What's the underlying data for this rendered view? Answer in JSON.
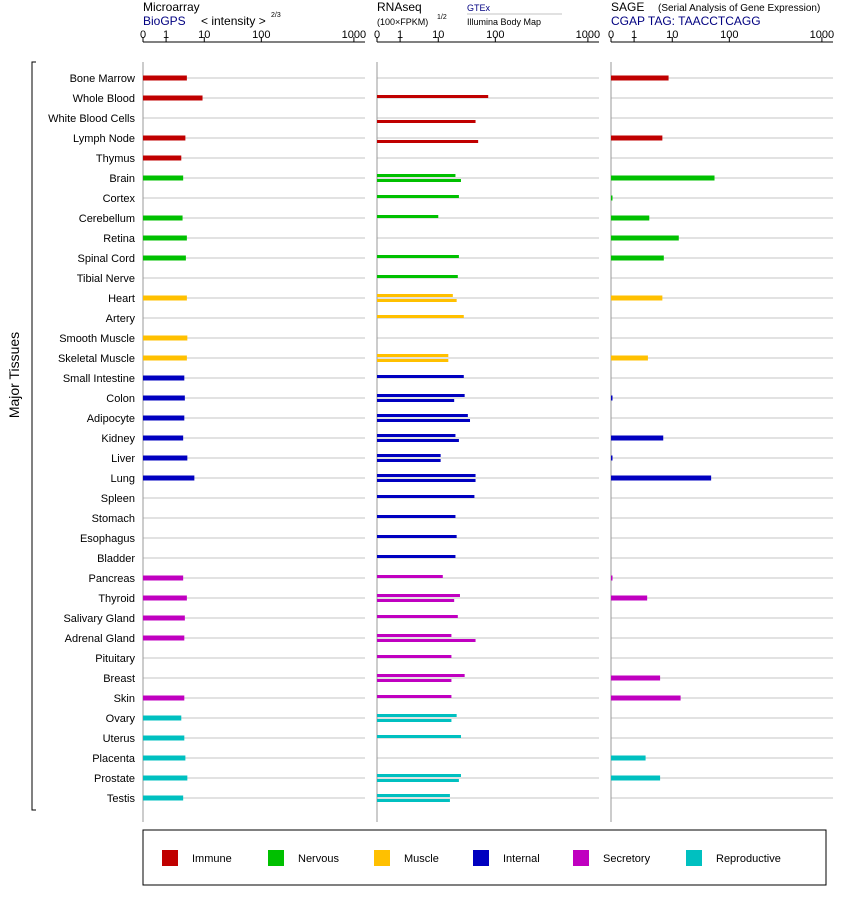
{
  "y_axis_label": "Major Tissues",
  "panels": {
    "microarray": {
      "title": "Microarray",
      "source": "BioGPS",
      "scale_label": "< intensity >",
      "scale_exponent": "2/3"
    },
    "rnaseq": {
      "title": "RNAseq",
      "unit": "(100×FPKM)",
      "unit_exponent": "1/2",
      "legend_gtex": "GTEx",
      "legend_illumina": "Illumina Body Map"
    },
    "sage": {
      "title": "SAGE",
      "subtitle": "(Serial Analysis of Gene Expression)",
      "tag": "CGAP TAG: TAACCTCAGG"
    }
  },
  "category_legend": [
    {
      "key": "immune",
      "label": "Immune",
      "color": "#c00000"
    },
    {
      "key": "nervous",
      "label": "Nervous",
      "color": "#00c000"
    },
    {
      "key": "muscle",
      "label": "Muscle",
      "color": "#ffc000"
    },
    {
      "key": "internal",
      "label": "Internal",
      "color": "#0000c0"
    },
    {
      "key": "secretory",
      "label": "Secretory",
      "color": "#c000c0"
    },
    {
      "key": "reproductive",
      "label": "Reproductive",
      "color": "#00c0c0"
    }
  ],
  "chart_data": {
    "type": "bar",
    "orientation": "horizontal",
    "x_scale": "log",
    "x_ticks": [
      "0",
      "1",
      "10",
      "100",
      "1000"
    ],
    "xlim": [
      0,
      1000
    ],
    "tissues": [
      {
        "name": "Bone Marrow",
        "category": "immune",
        "microarray": 3.5,
        "rnaseq_gtex": null,
        "rnaseq_ibm": null,
        "sage": 8
      },
      {
        "name": "Whole Blood",
        "category": "immune",
        "microarray": 9,
        "rnaseq_gtex": 75,
        "rnaseq_ibm": null,
        "sage": null
      },
      {
        "name": "White Blood Cells",
        "category": "immune",
        "microarray": null,
        "rnaseq_gtex": null,
        "rnaseq_ibm": 45,
        "sage": null
      },
      {
        "name": "Lymph Node",
        "category": "immune",
        "microarray": 3.2,
        "rnaseq_gtex": null,
        "rnaseq_ibm": 50,
        "sage": 5.5
      },
      {
        "name": "Thymus",
        "category": "immune",
        "microarray": 2.5,
        "rnaseq_gtex": null,
        "rnaseq_ibm": null,
        "sage": null
      },
      {
        "name": "Brain",
        "category": "nervous",
        "microarray": 2.8,
        "rnaseq_gtex": 20,
        "rnaseq_ibm": 25,
        "sage": 55
      },
      {
        "name": "Cortex",
        "category": "nervous",
        "microarray": null,
        "rnaseq_gtex": 23,
        "rnaseq_ibm": null,
        "sage": 0.05
      },
      {
        "name": "Cerebellum",
        "category": "nervous",
        "microarray": 2.7,
        "rnaseq_gtex": 10,
        "rnaseq_ibm": null,
        "sage": 2.5
      },
      {
        "name": "Retina",
        "category": "nervous",
        "microarray": 3.5,
        "rnaseq_gtex": null,
        "rnaseq_ibm": null,
        "sage": 13
      },
      {
        "name": "Spinal Cord",
        "category": "nervous",
        "microarray": 3.3,
        "rnaseq_gtex": 23,
        "rnaseq_ibm": null,
        "sage": 6
      },
      {
        "name": "Tibial Nerve",
        "category": "nervous",
        "microarray": null,
        "rnaseq_gtex": 22,
        "rnaseq_ibm": null,
        "sage": null
      },
      {
        "name": "Heart",
        "category": "muscle",
        "microarray": 3.5,
        "rnaseq_gtex": 18,
        "rnaseq_ibm": 21,
        "sage": 5.5
      },
      {
        "name": "Artery",
        "category": "muscle",
        "microarray": null,
        "rnaseq_gtex": 28,
        "rnaseq_ibm": null,
        "sage": null
      },
      {
        "name": "Smooth Muscle",
        "category": "muscle",
        "microarray": 3.6,
        "rnaseq_gtex": null,
        "rnaseq_ibm": null,
        "sage": null
      },
      {
        "name": "Skeletal Muscle",
        "category": "muscle",
        "microarray": 3.5,
        "rnaseq_gtex": 15,
        "rnaseq_ibm": 15,
        "sage": 2.3
      },
      {
        "name": "Small Intestine",
        "category": "internal",
        "microarray": 3.0,
        "rnaseq_gtex": 28,
        "rnaseq_ibm": null,
        "sage": null
      },
      {
        "name": "Colon",
        "category": "internal",
        "microarray": 3.1,
        "rnaseq_gtex": 29,
        "rnaseq_ibm": 19,
        "sage": 0.05
      },
      {
        "name": "Adipocyte",
        "category": "internal",
        "microarray": 3.0,
        "rnaseq_gtex": 33,
        "rnaseq_ibm": 36,
        "sage": null
      },
      {
        "name": "Kidney",
        "category": "internal",
        "microarray": 2.8,
        "rnaseq_gtex": 20,
        "rnaseq_ibm": 23,
        "sage": 5.8
      },
      {
        "name": "Liver",
        "category": "internal",
        "microarray": 3.6,
        "rnaseq_gtex": 11,
        "rnaseq_ibm": 11,
        "sage": 0.05
      },
      {
        "name": "Lung",
        "category": "internal",
        "microarray": 5.5,
        "rnaseq_gtex": 45,
        "rnaseq_ibm": 45,
        "sage": 48
      },
      {
        "name": "Spleen",
        "category": "internal",
        "microarray": null,
        "rnaseq_gtex": 43,
        "rnaseq_ibm": null,
        "sage": null
      },
      {
        "name": "Stomach",
        "category": "internal",
        "microarray": null,
        "rnaseq_gtex": 20,
        "rnaseq_ibm": null,
        "sage": null
      },
      {
        "name": "Esophagus",
        "category": "internal",
        "microarray": null,
        "rnaseq_gtex": 21,
        "rnaseq_ibm": null,
        "sage": null
      },
      {
        "name": "Bladder",
        "category": "internal",
        "microarray": null,
        "rnaseq_gtex": 20,
        "rnaseq_ibm": null,
        "sage": null
      },
      {
        "name": "Pancreas",
        "category": "secretory",
        "microarray": 2.8,
        "rnaseq_gtex": 12,
        "rnaseq_ibm": null,
        "sage": 0.05
      },
      {
        "name": "Thyroid",
        "category": "secretory",
        "microarray": 3.5,
        "rnaseq_gtex": 24,
        "rnaseq_ibm": 19,
        "sage": 2.2
      },
      {
        "name": "Salivary Gland",
        "category": "secretory",
        "microarray": 3.1,
        "rnaseq_gtex": 22,
        "rnaseq_ibm": null,
        "sage": null
      },
      {
        "name": "Adrenal Gland",
        "category": "secretory",
        "microarray": 3.0,
        "rnaseq_gtex": 17,
        "rnaseq_ibm": 45,
        "sage": null
      },
      {
        "name": "Pituitary",
        "category": "secretory",
        "microarray": null,
        "rnaseq_gtex": 17,
        "rnaseq_ibm": null,
        "sage": null
      },
      {
        "name": "Breast",
        "category": "secretory",
        "microarray": null,
        "rnaseq_gtex": 29,
        "rnaseq_ibm": 17,
        "sage": 4.8
      },
      {
        "name": "Skin",
        "category": "secretory",
        "microarray": 3.0,
        "rnaseq_gtex": 17,
        "rnaseq_ibm": null,
        "sage": 14
      },
      {
        "name": "Ovary",
        "category": "reproductive",
        "microarray": 2.5,
        "rnaseq_gtex": 21,
        "rnaseq_ibm": 17,
        "sage": null
      },
      {
        "name": "Uterus",
        "category": "reproductive",
        "microarray": 3.0,
        "rnaseq_gtex": 25,
        "rnaseq_ibm": null,
        "sage": null
      },
      {
        "name": "Placenta",
        "category": "reproductive",
        "microarray": 3.2,
        "rnaseq_gtex": null,
        "rnaseq_ibm": null,
        "sage": 2.0
      },
      {
        "name": "Prostate",
        "category": "reproductive",
        "microarray": 3.6,
        "rnaseq_gtex": 25,
        "rnaseq_ibm": 23,
        "sage": 4.8
      },
      {
        "name": "Testis",
        "category": "reproductive",
        "microarray": 2.8,
        "rnaseq_gtex": 16,
        "rnaseq_ibm": 16,
        "sage": null
      }
    ]
  }
}
